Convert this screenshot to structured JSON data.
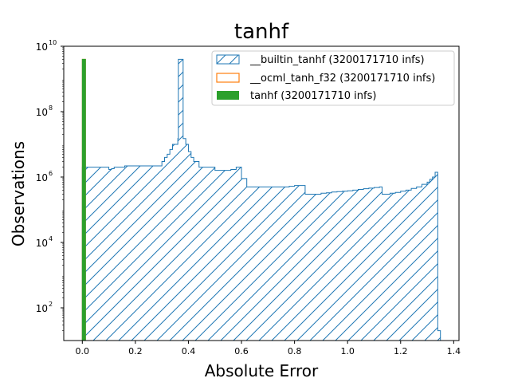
{
  "chart_data": {
    "type": "histogram",
    "title": "tanhf",
    "xlabel": "Absolute Error",
    "ylabel": "Observations",
    "xlim": [
      -0.07,
      1.42
    ],
    "yscale": "log",
    "ylim_exp": [
      1,
      10
    ],
    "xticks": [
      "0.0",
      "0.2",
      "0.4",
      "0.6",
      "0.8",
      "1.0",
      "1.2",
      "1.4"
    ],
    "xtick_values": [
      0.0,
      0.2,
      0.4,
      0.6,
      0.8,
      1.0,
      1.2,
      1.4
    ],
    "yticks": [
      {
        "base": "10",
        "exp": "2",
        "value_exp": 2
      },
      {
        "base": "10",
        "exp": "4",
        "value_exp": 4
      },
      {
        "base": "10",
        "exp": "6",
        "value_exp": 6
      },
      {
        "base": "10",
        "exp": "8",
        "value_exp": 8
      },
      {
        "base": "10",
        "exp": "10",
        "value_exp": 10
      }
    ],
    "legend_position": "top-right",
    "colors": {
      "builtin": "#1f77b4",
      "ocml": "#ff7f0e",
      "tanhf": "#2ca02c"
    },
    "series": [
      {
        "name": "__builtin_tanhf (3200171710 infs)",
        "style": "hatched-step",
        "x_edges": [
          0.0,
          0.012,
          0.1,
          0.11,
          0.12,
          0.14,
          0.16,
          0.2,
          0.24,
          0.28,
          0.3,
          0.31,
          0.32,
          0.33,
          0.34,
          0.36,
          0.362,
          0.38,
          0.39,
          0.4,
          0.41,
          0.42,
          0.44,
          0.46,
          0.5,
          0.52,
          0.54,
          0.56,
          0.58,
          0.6,
          0.62,
          0.64,
          0.66,
          0.68,
          0.7,
          0.72,
          0.74,
          0.76,
          0.78,
          0.8,
          0.84,
          0.88,
          0.9,
          0.92,
          0.94,
          0.96,
          0.98,
          1.0,
          1.02,
          1.04,
          1.06,
          1.08,
          1.1,
          1.12,
          1.13,
          1.16,
          1.18,
          1.2,
          1.22,
          1.24,
          1.26,
          1.28,
          1.3,
          1.31,
          1.32,
          1.33,
          1.34,
          1.35,
          1.352
        ],
        "values": [
          2000000.0,
          2000000.0,
          1700000.0,
          1800000.0,
          2000000.0,
          2000000.0,
          2200000.0,
          2200000.0,
          2200000.0,
          2200000.0,
          3000000.0,
          4000000.0,
          5000000.0,
          7000000.0,
          10000000.0,
          15000000.0,
          4000000000.0,
          15000000.0,
          10000000.0,
          6000000.0,
          4000000.0,
          3000000.0,
          2000000.0,
          2000000.0,
          1600000.0,
          1600000.0,
          1600000.0,
          1700000.0,
          2000000.0,
          900000.0,
          500000.0,
          500000.0,
          500000.0,
          500000.0,
          500000.0,
          500000.0,
          500000.0,
          500000.0,
          520000.0,
          550000.0,
          300000.0,
          300000.0,
          320000.0,
          330000.0,
          350000.0,
          360000.0,
          370000.0,
          380000.0,
          400000.0,
          420000.0,
          440000.0,
          460000.0,
          480000.0,
          500000.0,
          300000.0,
          320000.0,
          340000.0,
          370000.0,
          400000.0,
          450000.0,
          500000.0,
          600000.0,
          700000.0,
          850000.0,
          1000000.0,
          1400000.0,
          20.0,
          10.0
        ]
      },
      {
        "name": "__ocml_tanh_f32 (3200171710 infs)",
        "style": "outline",
        "x_edges": [
          0.0,
          0.012
        ],
        "values": [
          4000000000.0
        ]
      },
      {
        "name": "tanhf (3200171710 infs)",
        "style": "filled",
        "x_edges": [
          0.0,
          0.012
        ],
        "values": [
          4000000000.0
        ]
      }
    ]
  }
}
